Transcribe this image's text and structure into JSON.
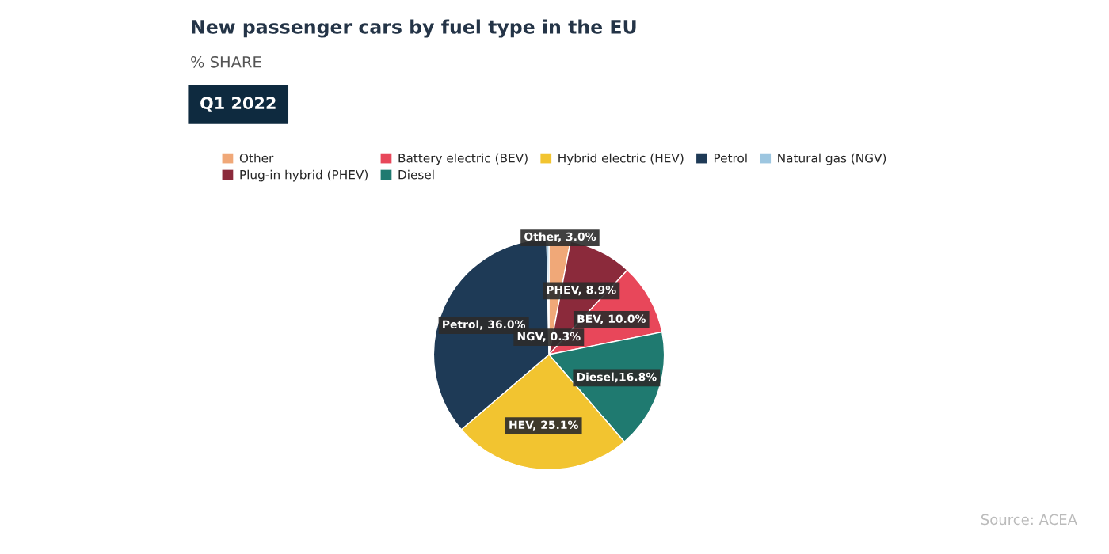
{
  "chart_data": {
    "type": "pie",
    "title": "New passenger cars by fuel type in the EU",
    "subtitle": "% SHARE",
    "categories": [
      "Other",
      "Plug-in hybrid (PHEV)",
      "Battery electric (BEV)",
      "Diesel",
      "Hybrid electric (HEV)",
      "Petrol",
      "Natural gas (NGV)"
    ],
    "values": [
      3.0,
      8.9,
      10.0,
      16.8,
      25.1,
      36.0,
      0.3
    ],
    "colors": [
      "#f0a878",
      "#8b2a3b",
      "#e8475a",
      "#1f7a70",
      "#f2c430",
      "#1e3a56",
      "#9dc6e0"
    ],
    "value_labels": [
      "Other, 3.0%",
      "PHEV, 8.9%",
      "BEV, 10.0%",
      "Diesel,16.8%",
      "HEV, 25.1%",
      "Petrol, 36.0%",
      "NGV, 0.3%"
    ],
    "legend": "top",
    "annotations": [
      "Q1 2022",
      "Source: ACEA"
    ]
  }
}
